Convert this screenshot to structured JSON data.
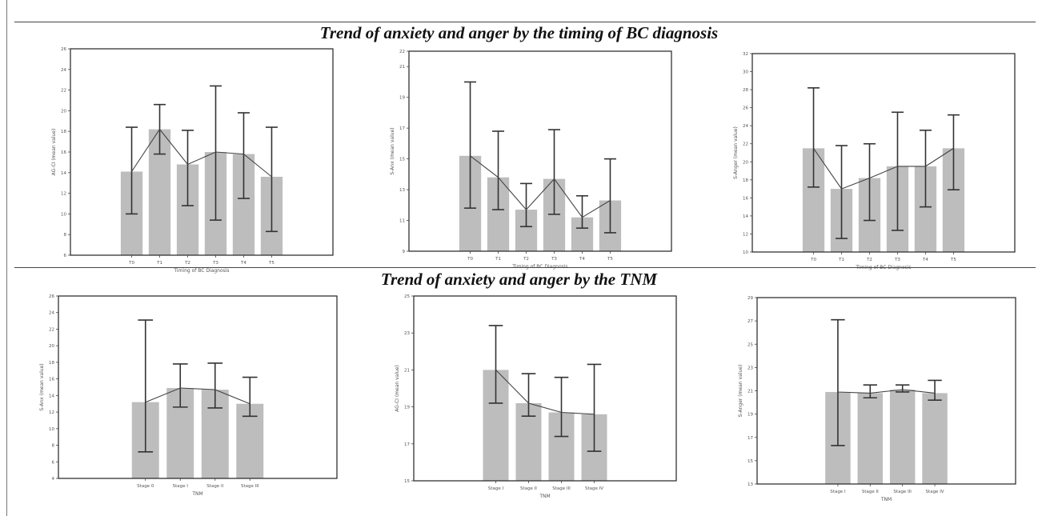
{
  "figure": {
    "section_titles": [
      "Trend of anxiety and anger by the timing of BC diagnosis",
      "Trend of anxiety and anger by the TNM"
    ]
  },
  "chart_data": [
    {
      "type": "bar",
      "categories": [
        "T0",
        "T1",
        "T2",
        "T3",
        "T4",
        "T5"
      ],
      "values": [
        14.1,
        18.2,
        14.8,
        16.0,
        15.8,
        13.6
      ],
      "error_low": [
        10.0,
        15.8,
        10.8,
        9.4,
        11.5,
        8.3
      ],
      "error_high": [
        18.4,
        20.6,
        18.1,
        22.4,
        19.8,
        18.4
      ],
      "title": "",
      "xlabel": "Timing of BC Diagnosis",
      "ylabel": "AG-CI (mean value)",
      "ylim": [
        6,
        26
      ],
      "yticks": [
        6,
        8,
        10,
        12,
        14,
        16,
        18,
        20,
        22,
        24,
        26
      ],
      "trend_line": true,
      "grid": false
    },
    {
      "type": "bar",
      "categories": [
        "T0",
        "T1",
        "T2",
        "T3",
        "T4",
        "T5"
      ],
      "values": [
        15.2,
        13.8,
        11.7,
        13.7,
        11.2,
        12.3
      ],
      "error_low": [
        11.8,
        11.7,
        10.6,
        11.4,
        10.5,
        10.2
      ],
      "error_high": [
        20.0,
        16.8,
        13.4,
        16.9,
        12.6,
        15.0
      ],
      "title": "",
      "xlabel": "Timing of BC Diagnosis",
      "ylabel": "S-Anx (mean value)",
      "ylim": [
        9,
        22
      ],
      "yticks": [
        9,
        11,
        13,
        15,
        17,
        19,
        21,
        22
      ],
      "trend_line": true,
      "grid": false
    },
    {
      "type": "bar",
      "categories": [
        "T0",
        "T1",
        "T2",
        "T3",
        "T4",
        "T5"
      ],
      "values": [
        21.5,
        17.0,
        18.2,
        19.5,
        19.5,
        21.5
      ],
      "error_low": [
        17.2,
        11.5,
        13.5,
        12.4,
        15.0,
        16.9
      ],
      "error_high": [
        28.2,
        21.8,
        22.0,
        25.5,
        23.5,
        25.2
      ],
      "title": "",
      "xlabel": "Timing of BC Diagnosis",
      "ylabel": "S-Anger (mean value)",
      "ylim": [
        10,
        32
      ],
      "yticks": [
        10,
        12,
        14,
        16,
        18,
        20,
        22,
        24,
        26,
        28,
        30,
        32
      ],
      "trend_line": true,
      "grid": false
    },
    {
      "type": "bar",
      "categories": [
        "Stage 0",
        "Stage I",
        "Stage II",
        "Stage III"
      ],
      "values": [
        13.2,
        14.9,
        14.7,
        13.0
      ],
      "error_low": [
        7.2,
        12.6,
        12.5,
        11.5
      ],
      "error_high": [
        23.1,
        17.8,
        17.9,
        16.2
      ],
      "title": "",
      "xlabel": "TNM",
      "ylabel": "S-Anx (mean value)",
      "ylim": [
        4,
        26
      ],
      "yticks": [
        4,
        6,
        8,
        10,
        12,
        14,
        16,
        18,
        20,
        22,
        24,
        26
      ],
      "trend_line": true,
      "grid": false
    },
    {
      "type": "bar",
      "categories": [
        "Stage I",
        "Stage II",
        "Stage III",
        "Stage IV"
      ],
      "values": [
        21.0,
        19.2,
        18.7,
        18.6
      ],
      "error_low": [
        19.2,
        18.5,
        17.4,
        16.6
      ],
      "error_high": [
        23.4,
        20.8,
        20.6,
        21.3
      ],
      "title": "",
      "xlabel": "TNM",
      "ylabel": "AG-CI (mean value)",
      "ylim": [
        15,
        25
      ],
      "yticks": [
        15,
        17,
        19,
        21,
        23,
        25
      ],
      "trend_line": true,
      "grid": false
    },
    {
      "type": "bar",
      "categories": [
        "Stage I",
        "Stage II",
        "Stage III",
        "Stage IV"
      ],
      "values": [
        20.9,
        20.8,
        21.1,
        20.8
      ],
      "error_low": [
        16.3,
        20.4,
        20.9,
        20.2
      ],
      "error_high": [
        27.1,
        21.5,
        21.5,
        21.9
      ],
      "title": "",
      "xlabel": "TNM",
      "ylabel": "S-Anger (mean value)",
      "ylim": [
        13,
        29
      ],
      "yticks": [
        13,
        15,
        17,
        19,
        21,
        23,
        25,
        27,
        29
      ],
      "trend_line": true,
      "grid": false
    }
  ]
}
